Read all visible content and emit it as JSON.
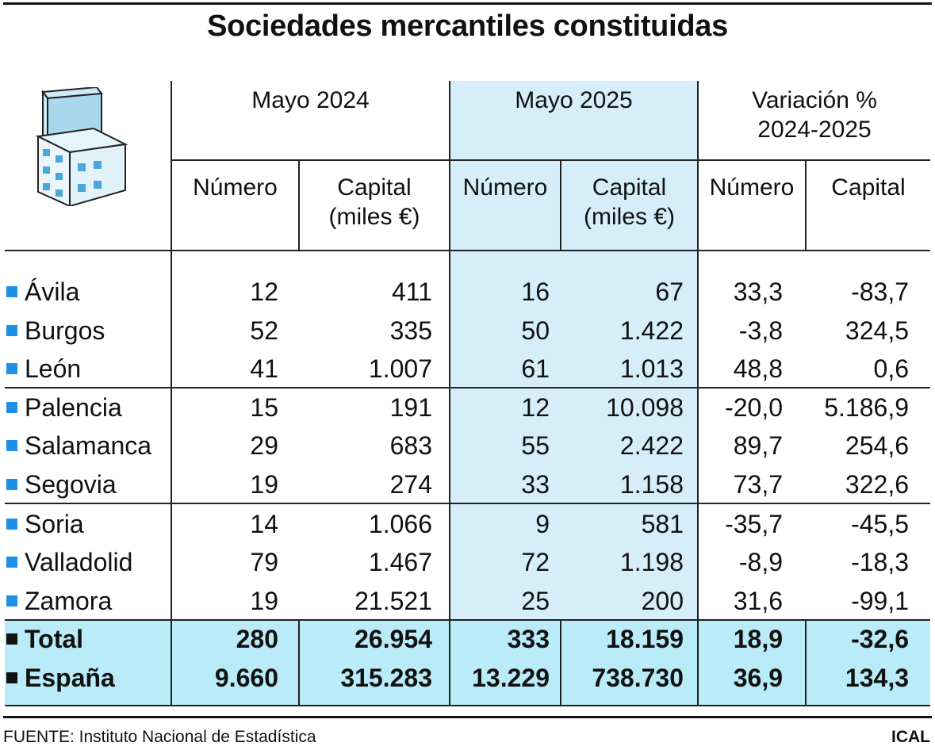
{
  "title": "Sociedades mercantiles constituidas",
  "groups": [
    {
      "label": "Mayo 2024"
    },
    {
      "label": "Mayo 2025"
    },
    {
      "label": "Variación %\n2024-2025"
    }
  ],
  "subheaders": [
    "Número",
    "Capital\n(miles €)",
    "Número",
    "Capital\n(miles €)",
    "Número",
    "Capital"
  ],
  "rows": [
    {
      "name": "Ávila",
      "values": [
        "12",
        "411",
        "16",
        "67",
        "33,3",
        "-83,7"
      ]
    },
    {
      "name": "Burgos",
      "values": [
        "52",
        "335",
        "50",
        "1.422",
        "-3,8",
        "324,5"
      ]
    },
    {
      "name": "León",
      "values": [
        "41",
        "1.007",
        "61",
        "1.013",
        "48,8",
        "0,6"
      ]
    },
    {
      "name": "Palencia",
      "values": [
        "15",
        "191",
        "12",
        "10.098",
        "-20,0",
        "5.186,9"
      ]
    },
    {
      "name": "Salamanca",
      "values": [
        "29",
        "683",
        "55",
        "2.422",
        "89,7",
        "254,6"
      ]
    },
    {
      "name": "Segovia",
      "values": [
        "19",
        "274",
        "33",
        "1.158",
        "73,7",
        "322,6"
      ]
    },
    {
      "name": "Soria",
      "values": [
        "14",
        "1.066",
        "9",
        "581",
        "-35,7",
        "-45,5"
      ]
    },
    {
      "name": "Valladolid",
      "values": [
        "79",
        "1.467",
        "72",
        "1.198",
        "-8,9",
        "-18,3"
      ]
    },
    {
      "name": "Zamora",
      "values": [
        "19",
        "21.521",
        "25",
        "200",
        "31,6",
        "-99,1"
      ]
    }
  ],
  "totals": [
    {
      "name": "Total",
      "values": [
        "280",
        "26.954",
        "333",
        "18.159",
        "18,9",
        "-32,6"
      ]
    },
    {
      "name": "España",
      "values": [
        "9.660",
        "315.283",
        "13.229",
        "738.730",
        "36,9",
        "134,3"
      ]
    }
  ],
  "footer": {
    "source": "FUENTE: Instituto Nacional de Estadística",
    "brand": "ICAL"
  },
  "icon": "office-building-icon",
  "colors": {
    "bullet": "#1e90e6",
    "highlight_column": "#d6eef9",
    "total_band": "#b9ecf8"
  }
}
